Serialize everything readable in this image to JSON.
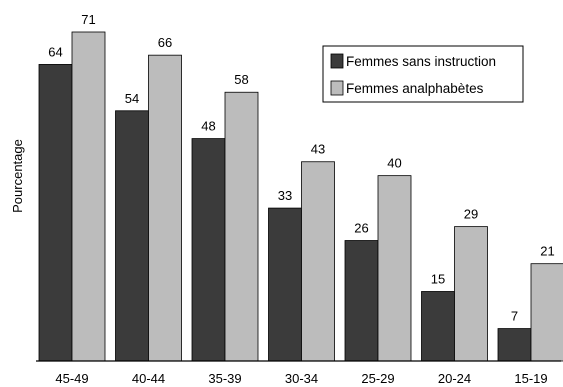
{
  "chart_data": {
    "type": "bar",
    "categories": [
      "45-49",
      "40-44",
      "35-39",
      "30-34",
      "25-29",
      "20-24",
      "15-19"
    ],
    "series": [
      {
        "name": "Femmes sans instruction",
        "color": "#3b3b3b",
        "values": [
          64,
          54,
          48,
          33,
          26,
          15,
          7
        ]
      },
      {
        "name": "Femmes analphabètes",
        "color": "#bcbcbc",
        "values": [
          71,
          66,
          58,
          43,
          40,
          29,
          21
        ]
      }
    ],
    "title": "",
    "xlabel": "",
    "ylabel": "Pourcentage",
    "ylim": [
      0,
      71
    ],
    "grid": false,
    "legend_position": "top-right"
  }
}
